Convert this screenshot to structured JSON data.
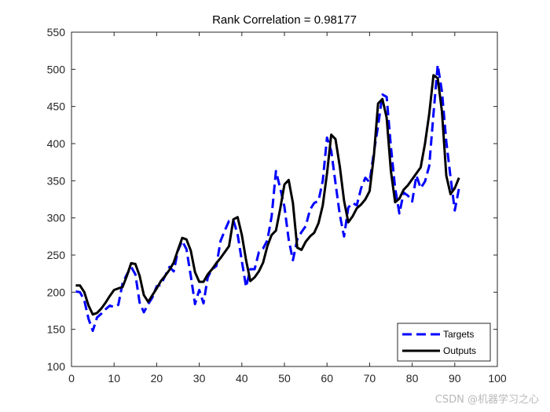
{
  "chart_data": {
    "type": "line",
    "title": "Rank Correlation = 0.98177",
    "xlim": [
      0,
      100
    ],
    "ylim": [
      100,
      550
    ],
    "xticks": [
      0,
      10,
      20,
      30,
      40,
      50,
      60,
      70,
      80,
      90,
      100
    ],
    "yticks": [
      100,
      150,
      200,
      250,
      300,
      350,
      400,
      450,
      500,
      550
    ],
    "legend_position": "bottom-right",
    "grid": false,
    "series": [
      {
        "name": "Targets",
        "color": "#0000ff",
        "style": "dashed",
        "x": [
          1,
          2,
          3,
          4,
          5,
          6,
          7,
          8,
          9,
          10,
          11,
          12,
          13,
          14,
          15,
          16,
          17,
          18,
          19,
          20,
          21,
          22,
          23,
          24,
          25,
          26,
          27,
          28,
          29,
          30,
          31,
          32,
          33,
          34,
          35,
          36,
          37,
          38,
          39,
          40,
          41,
          42,
          43,
          44,
          45,
          46,
          47,
          48,
          49,
          50,
          51,
          52,
          53,
          54,
          55,
          56,
          57,
          58,
          59,
          60,
          61,
          62,
          63,
          64,
          65,
          66,
          67,
          68,
          69,
          70,
          71,
          72,
          73,
          74,
          75,
          76,
          77,
          78,
          79,
          80,
          81,
          82,
          83,
          84,
          85,
          86,
          87,
          88,
          89,
          90,
          91
        ],
        "y": [
          201,
          200,
          189,
          164,
          148,
          166,
          171,
          177,
          182,
          180,
          183,
          212,
          224,
          234,
          224,
          186,
          173,
          184,
          193,
          208,
          210,
          222,
          234,
          228,
          256,
          269,
          258,
          222,
          184,
          203,
          185,
          220,
          231,
          235,
          269,
          283,
          296,
          297,
          278,
          242,
          207,
          231,
          231,
          254,
          259,
          270,
          302,
          363,
          340,
          315,
          271,
          243,
          271,
          281,
          289,
          311,
          320,
          323,
          350,
          408,
          390,
          347,
          304,
          275,
          314,
          320,
          317,
          340,
          354,
          348,
          388,
          424,
          466,
          463,
          396,
          340,
          306,
          334,
          330,
          322,
          357,
          340,
          349,
          370,
          440,
          506,
          470,
          403,
          355,
          310,
          340
        ]
      },
      {
        "name": "Outputs",
        "color": "#000000",
        "style": "solid",
        "x": [
          1,
          2,
          3,
          4,
          5,
          6,
          7,
          8,
          9,
          10,
          11,
          12,
          13,
          14,
          15,
          16,
          17,
          18,
          19,
          20,
          21,
          22,
          23,
          24,
          25,
          26,
          27,
          28,
          29,
          30,
          31,
          32,
          33,
          34,
          35,
          36,
          37,
          38,
          39,
          40,
          41,
          42,
          43,
          44,
          45,
          46,
          47,
          48,
          49,
          50,
          51,
          52,
          53,
          54,
          55,
          56,
          57,
          58,
          59,
          60,
          61,
          62,
          63,
          64,
          65,
          66,
          67,
          68,
          69,
          70,
          71,
          72,
          73,
          74,
          75,
          76,
          77,
          78,
          79,
          80,
          81,
          82,
          83,
          84,
          85,
          86,
          87,
          88,
          89,
          90,
          91
        ],
        "y": [
          209,
          209,
          200,
          182,
          170,
          172,
          178,
          186,
          195,
          203,
          205,
          207,
          222,
          239,
          238,
          222,
          196,
          187,
          196,
          205,
          215,
          222,
          230,
          240,
          257,
          273,
          271,
          256,
          227,
          214,
          214,
          224,
          231,
          239,
          246,
          254,
          262,
          298,
          301,
          277,
          243,
          215,
          220,
          228,
          240,
          262,
          277,
          283,
          312,
          345,
          351,
          320,
          260,
          257,
          268,
          275,
          280,
          293,
          317,
          360,
          412,
          406,
          369,
          323,
          294,
          302,
          313,
          318,
          325,
          336,
          383,
          454,
          460,
          435,
          363,
          321,
          326,
          338,
          344,
          352,
          360,
          368,
          400,
          440,
          492,
          488,
          443,
          357,
          332,
          340,
          354
        ]
      }
    ]
  },
  "watermark": "CSDN @机器学习之心"
}
